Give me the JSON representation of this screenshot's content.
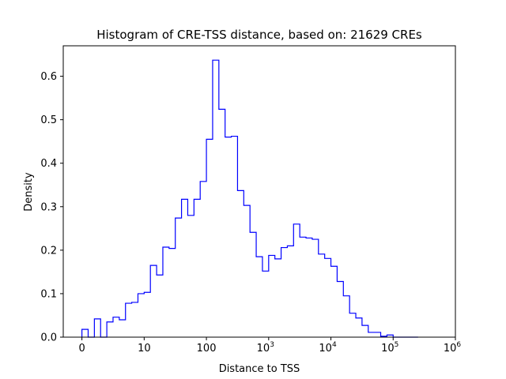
{
  "chart_data": {
    "type": "histogram",
    "title": "Histogram of CRE-TSS distance, based on: 21629 CREs",
    "xlabel": "Distance to TSS",
    "ylabel": "Density",
    "x_scale": "symlog",
    "xlim": [
      -0.3,
      6
    ],
    "ylim": [
      0,
      0.67
    ],
    "grid": false,
    "legend": "none",
    "color": "#0000ff",
    "x_ticks": [
      {
        "value": 0,
        "base": "0",
        "exp": ""
      },
      {
        "value": 1,
        "base": "10",
        "exp": ""
      },
      {
        "value": 2,
        "base": "100",
        "exp": ""
      },
      {
        "value": 3,
        "base": "10",
        "exp": "3"
      },
      {
        "value": 4,
        "base": "10",
        "exp": "4"
      },
      {
        "value": 5,
        "base": "10",
        "exp": "5"
      },
      {
        "value": 6,
        "base": "10",
        "exp": "6"
      }
    ],
    "y_ticks": [
      "0.0",
      "0.1",
      "0.2",
      "0.3",
      "0.4",
      "0.5",
      "0.6"
    ],
    "y_tick_values": [
      0,
      0.1,
      0.2,
      0.3,
      0.4,
      0.5,
      0.6
    ],
    "bin_edges": [
      0.0,
      0.1,
      0.2,
      0.3,
      0.4,
      0.5,
      0.6,
      0.7,
      0.8,
      0.9,
      1.0,
      1.1,
      1.2,
      1.3,
      1.4,
      1.5,
      1.6,
      1.7,
      1.8,
      1.9,
      2.0,
      2.1,
      2.2,
      2.3,
      2.4,
      2.5,
      2.6,
      2.7,
      2.8,
      2.9,
      3.0,
      3.1,
      3.2,
      3.3,
      3.4,
      3.5,
      3.6,
      3.7,
      3.8,
      3.9,
      4.0,
      4.1,
      4.2,
      4.3,
      4.4,
      4.5,
      4.6,
      4.7,
      4.8,
      4.9,
      5.0,
      5.1,
      5.2,
      5.3,
      5.4
    ],
    "values": [
      0.018,
      0.0,
      0.042,
      0.0,
      0.035,
      0.046,
      0.04,
      0.078,
      0.08,
      0.1,
      0.103,
      0.165,
      0.143,
      0.207,
      0.204,
      0.274,
      0.317,
      0.28,
      0.317,
      0.358,
      0.455,
      0.637,
      0.524,
      0.46,
      0.462,
      0.337,
      0.303,
      0.241,
      0.185,
      0.152,
      0.188,
      0.18,
      0.206,
      0.21,
      0.26,
      0.23,
      0.228,
      0.225,
      0.191,
      0.181,
      0.163,
      0.128,
      0.095,
      0.055,
      0.044,
      0.027,
      0.011,
      0.011,
      0.002,
      0.005,
      0.0,
      0.0,
      0.0,
      0.0
    ]
  }
}
